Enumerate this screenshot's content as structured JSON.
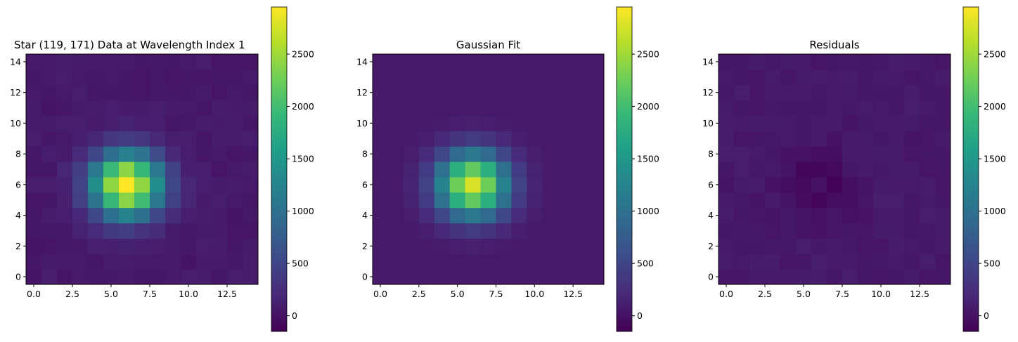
{
  "chart_data": [
    {
      "type": "heatmap",
      "title": "Star (119, 171) Data at Wavelength Index 1",
      "grid": false,
      "xlim": [
        -0.5,
        14.5
      ],
      "ylim": [
        -0.5,
        14.5
      ],
      "x_ticks": [
        "0.0",
        "2.5",
        "5.0",
        "7.5",
        "10.0",
        "12.5"
      ],
      "y_ticks": [
        "0",
        "2",
        "4",
        "6",
        "8",
        "10",
        "12",
        "14"
      ],
      "colormap": "viridis",
      "colorbar": {
        "vmin": -150,
        "vmax": 2950,
        "ticks": [
          "0",
          "500",
          "1000",
          "1500",
          "2000",
          "2500"
        ]
      },
      "center": [
        6,
        6
      ],
      "sigma": [
        1.55,
        1.45
      ],
      "peak": 2950,
      "background": 60,
      "noise": 40
    },
    {
      "type": "heatmap",
      "title": "Gaussian Fit",
      "grid": false,
      "xlim": [
        -0.5,
        14.5
      ],
      "ylim": [
        -0.5,
        14.5
      ],
      "x_ticks": [
        "0.0",
        "2.5",
        "5.0",
        "7.5",
        "10.0",
        "12.5"
      ],
      "y_ticks": [
        "0",
        "2",
        "4",
        "6",
        "8",
        "10",
        "12",
        "14"
      ],
      "colormap": "viridis",
      "colorbar": {
        "vmin": -150,
        "vmax": 2950,
        "ticks": [
          "0",
          "500",
          "1000",
          "1500",
          "2000",
          "2500"
        ]
      },
      "center": [
        6,
        6
      ],
      "sigma": [
        1.55,
        1.45
      ],
      "peak": 2700,
      "background": 60,
      "noise": 0
    },
    {
      "type": "heatmap",
      "title": "Residuals",
      "grid": false,
      "xlim": [
        -0.5,
        14.5
      ],
      "ylim": [
        -0.5,
        14.5
      ],
      "x_ticks": [
        "0.0",
        "2.5",
        "5.0",
        "7.5",
        "10.0",
        "12.5"
      ],
      "y_ticks": [
        "0",
        "2",
        "4",
        "6",
        "8",
        "10",
        "12",
        "14"
      ],
      "colormap": "viridis",
      "colorbar": {
        "vmin": -150,
        "vmax": 2950,
        "ticks": [
          "0",
          "500",
          "1000",
          "1500",
          "2000",
          "2500"
        ]
      },
      "center": [
        6,
        6
      ],
      "residual_mode": true,
      "noise": 40
    }
  ],
  "colors": {
    "viridis": [
      "#440154",
      "#482878",
      "#3e4989",
      "#31688e",
      "#26828e",
      "#1f9e89",
      "#35b779",
      "#6ece58",
      "#b5de2b",
      "#fde725"
    ],
    "axis": "#000000"
  }
}
